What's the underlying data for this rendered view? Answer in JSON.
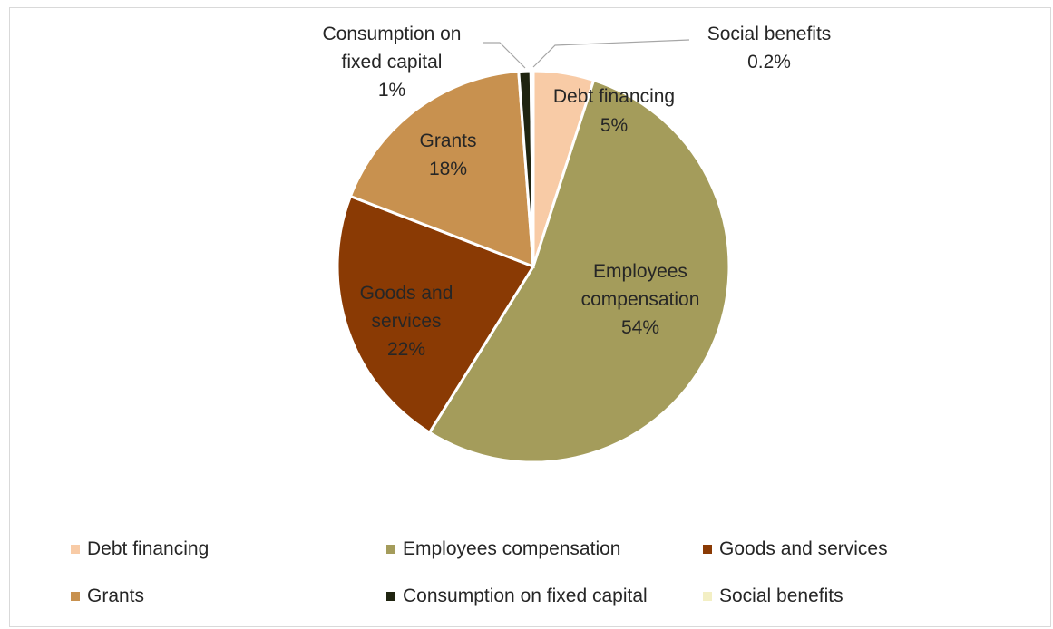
{
  "chart_data": {
    "type": "pie",
    "title": "",
    "legend_position": "bottom",
    "slices": [
      {
        "name": "Debt financing",
        "value": 5,
        "label_lines": [
          "Debt financing",
          "5%"
        ],
        "color": "#f8cba6"
      },
      {
        "name": "Employees compensation",
        "value": 54,
        "label_lines": [
          "Employees",
          "compensation",
          "54%"
        ],
        "color": "#a49c5b"
      },
      {
        "name": "Goods and services",
        "value": 22,
        "label_lines": [
          "Goods and",
          "services",
          "22%"
        ],
        "color": "#8a3a04"
      },
      {
        "name": "Grants",
        "value": 18,
        "label_lines": [
          "Grants",
          "18%"
        ],
        "color": "#c8914f"
      },
      {
        "name": "Consumption on fixed capital",
        "value": 1,
        "label_lines": [
          "Consumption on",
          "fixed capital",
          "1%"
        ],
        "color": "#1f2410"
      },
      {
        "name": "Social benefits",
        "value": 0.2,
        "label_lines": [
          "Social benefits",
          "0.2%"
        ],
        "color": "#f3efc4"
      }
    ]
  }
}
